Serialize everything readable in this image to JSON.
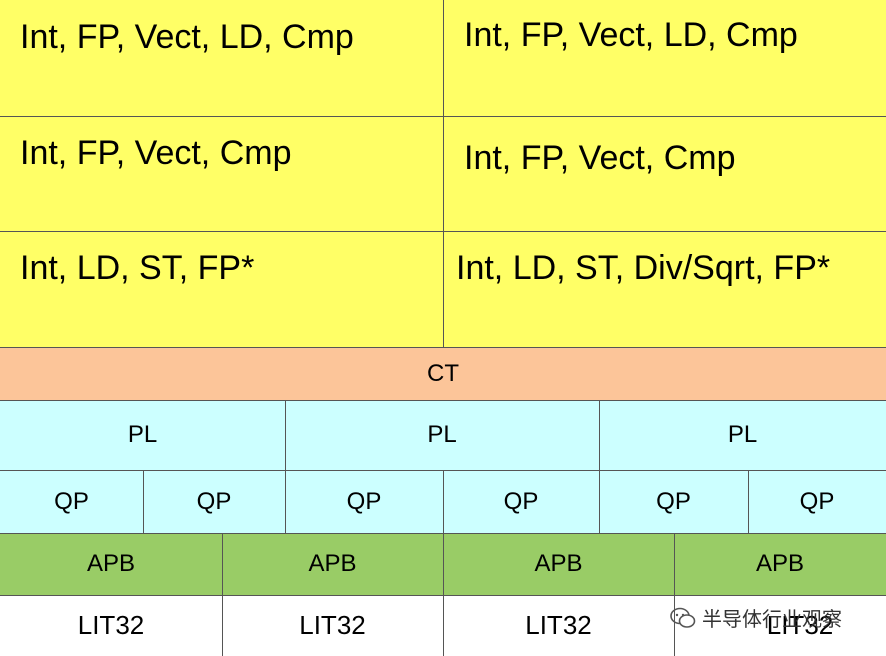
{
  "execution_units": [
    "Int, FP, Vect, LD, Cmp",
    "Int, FP, Vect, LD, Cmp",
    "Int, FP, Vect, Cmp",
    "Int, FP, Vect, Cmp",
    "Int, LD, ST, FP*",
    "Int, LD, ST, Div/Sqrt, FP*"
  ],
  "ct_label": "CT",
  "pl_labels": [
    "PL",
    "PL",
    "PL"
  ],
  "qp_labels": [
    "QP",
    "QP",
    "QP",
    "QP",
    "QP",
    "QP"
  ],
  "apb_labels": [
    "APB",
    "APB",
    "APB",
    "APB"
  ],
  "lit_labels": [
    "LIT32",
    "LIT32",
    "LIT32",
    "LIT32"
  ],
  "watermark": "半导体行业观察",
  "colors": {
    "exec": "#ffff66",
    "ct": "#fcc599",
    "pl_qp": "#ccffff",
    "apb": "#99cc66",
    "lit": "#ffffff"
  }
}
